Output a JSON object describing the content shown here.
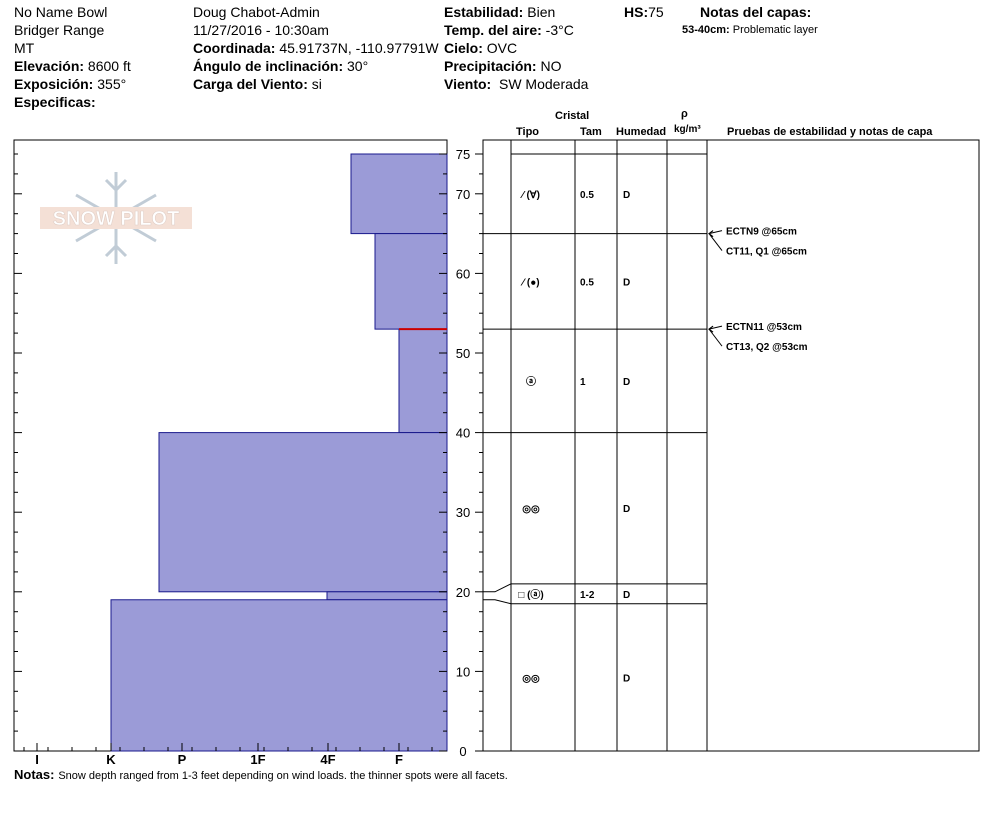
{
  "header": {
    "location": "No Name Bowl",
    "range": "Bridger Range",
    "state": "MT",
    "elevation_label": "Elevación:",
    "elevation_value": "8600 ft",
    "aspect_label": "Exposición:",
    "aspect_value": "355°",
    "specifics_label": "Especificas:",
    "observer": "Doug Chabot-Admin",
    "datetime": "11/27/2016 - 10:30am",
    "coord_label": "Coordinada:",
    "coord_value": "45.91737N, -110.97791W",
    "slope_label": "Ángulo de inclinación:",
    "slope_value": "30°",
    "wind_load_label": "Carga del Viento:",
    "wind_load_value": "si",
    "stability_label": "Estabilidad:",
    "stability_value": "Bien",
    "air_temp_label": "Temp. del aire:",
    "air_temp_value": "-3°C",
    "sky_label": "Cielo:",
    "sky_value": "OVC",
    "precip_label": "Precipitación:",
    "precip_value": "NO",
    "wind_label": "Viento:",
    "wind_value": "SW Moderada",
    "hs_label": "HS:",
    "hs_value": "75",
    "layer_notes_label": "Notas del capas:",
    "layer_note_range": "53-40cm:",
    "layer_note_text": "Problematic layer"
  },
  "columns": {
    "crystal": "Cristal",
    "type": "Tipo",
    "size": "Tam",
    "moisture": "Humedad",
    "density_symbol": "ρ",
    "density_unit": "kg/m³",
    "tests": "Pruebas de estabilidad y notas de capa"
  },
  "footer": {
    "notes_label": "Notas:",
    "notes_text": "Snow depth ranged from 1-3 feet depending on wind loads. the thinner spots were all facets."
  },
  "logo": {
    "text": "SNOW PILOT"
  },
  "colors": {
    "layer_fill": "#9b9bd7",
    "layer_stroke": "#1a1a8c",
    "critical_layer": "#cc0000"
  },
  "chart_data": {
    "type": "bar",
    "orientation": "horizontal",
    "y_axis": {
      "label": "",
      "min": 0,
      "max": 75,
      "ticks": [
        0,
        10,
        20,
        30,
        40,
        50,
        60,
        70,
        75
      ]
    },
    "x_axis": {
      "label": "",
      "categories": [
        "I",
        "K",
        "P",
        "1F",
        "4F",
        "F"
      ],
      "reversed": true
    },
    "hardness_layers": [
      {
        "top": 75,
        "bottom": 65,
        "hardness": "4F+"
      },
      {
        "top": 65,
        "bottom": 53,
        "hardness": "4F-F"
      },
      {
        "top": 53,
        "bottom": 40,
        "hardness": "F+"
      },
      {
        "top": 40,
        "bottom": 20,
        "hardness": "P-"
      },
      {
        "top": 20,
        "bottom": 19,
        "hardness": "4F"
      },
      {
        "top": 19,
        "bottom": 0,
        "hardness": "K"
      }
    ],
    "critical_layer_height": 53,
    "layers": [
      {
        "top": 75,
        "bottom": 65,
        "grain_type": "⁄ (∀)",
        "size": "0.5",
        "moisture": "D"
      },
      {
        "top": 65,
        "bottom": 53,
        "grain_type": "⁄ (●)",
        "size": "0.5",
        "moisture": "D"
      },
      {
        "top": 53,
        "bottom": 40,
        "grain_type": "ⓐ",
        "size": "1",
        "moisture": "D"
      },
      {
        "top": 40,
        "bottom": 21,
        "grain_type": "◎◎",
        "size": "",
        "moisture": "D"
      },
      {
        "top": 21,
        "bottom": 18.5,
        "grain_type": "□ (ⓐ)",
        "size": "1-2",
        "moisture": "D"
      },
      {
        "top": 18.5,
        "bottom": 0,
        "grain_type": "◎◎",
        "size": "",
        "moisture": "D"
      }
    ],
    "tests": [
      {
        "label": "ECTN9 @65cm",
        "depth": 65
      },
      {
        "label": "CT11, Q1 @65cm",
        "depth": 65
      },
      {
        "label": "ECTN11 @53cm",
        "depth": 53
      },
      {
        "label": "CT13, Q2 @53cm",
        "depth": 53
      }
    ]
  }
}
